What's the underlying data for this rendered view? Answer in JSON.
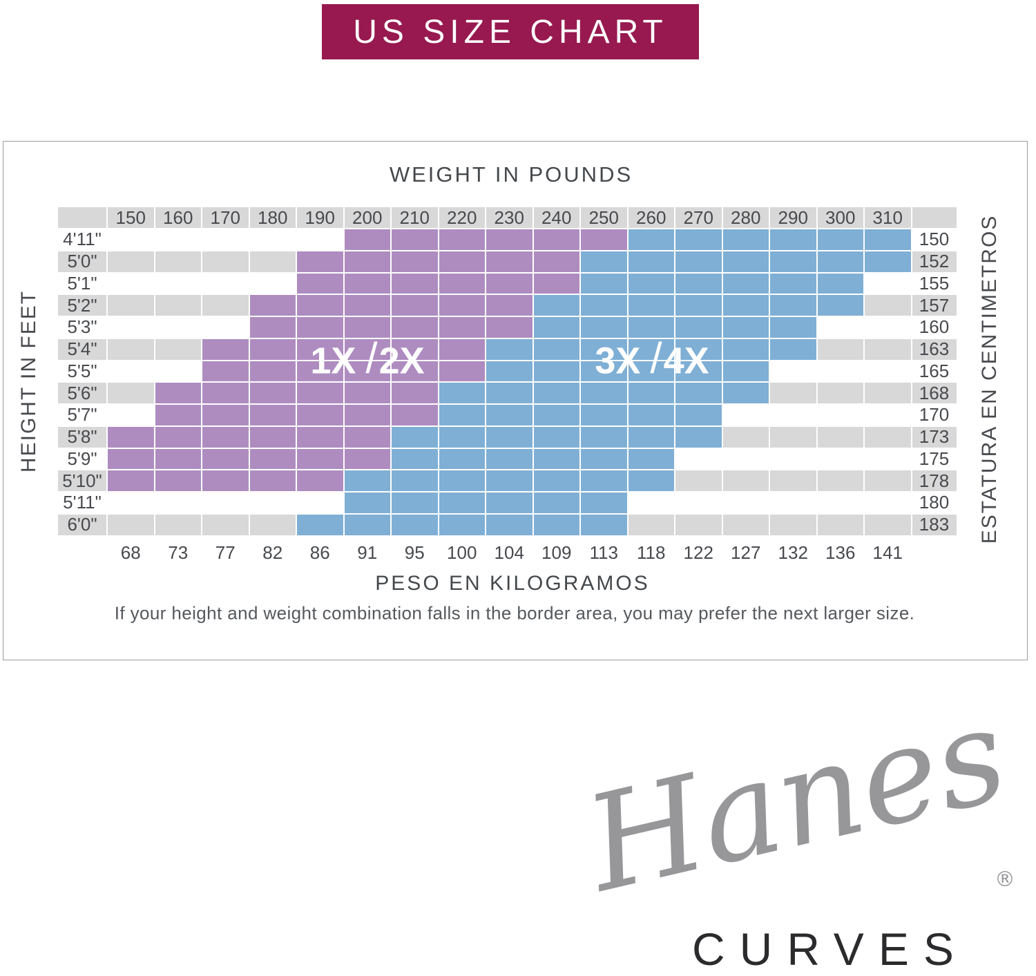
{
  "banner": {
    "label": "US SIZE CHART"
  },
  "axes": {
    "top": "WEIGHT IN POUNDS",
    "bottom": "PESO EN KILOGRAMOS",
    "left": "HEIGHT IN FEET",
    "right": "ESTATURA EN CENTIMETROS"
  },
  "note": "If your height and weight combination falls in the border area, you may prefer the next larger size.",
  "region_labels": {
    "purple_left": "1X",
    "purple_slash": "/",
    "purple_right": "2X",
    "blue_left": "3X",
    "blue_slash": "/",
    "blue_right": "4X"
  },
  "colors": {
    "banner_bg": "#97194f",
    "purple": "#ae8cc0",
    "blue": "#7fafd5",
    "stripe_gray": "#d8d8d8",
    "text_dark": "#47494d"
  },
  "logo": {
    "brand": "Hanes",
    "registered": "®",
    "subbrand": "CURVES"
  },
  "chart_data": {
    "type": "heatmap",
    "title": "US SIZE CHART",
    "x_label_top": "WEIGHT IN POUNDS",
    "x_label_bottom": "PESO EN KILOGRAMOS",
    "y_label_left": "HEIGHT IN FEET",
    "y_label_right": "ESTATURA EN CENTIMETROS",
    "legend": {
      "purple": "1X/2X",
      "blue": "3X/4X"
    },
    "weights_lb": [
      150,
      160,
      170,
      180,
      190,
      200,
      210,
      220,
      230,
      240,
      250,
      260,
      270,
      280,
      290,
      300,
      310
    ],
    "weights_kg": [
      68,
      73,
      77,
      82,
      86,
      91,
      95,
      100,
      104,
      109,
      113,
      118,
      122,
      127,
      132,
      136,
      141
    ],
    "rows": [
      {
        "height_ft": "4'11\"",
        "height_cm": "150",
        "purple": [
          200,
          250
        ],
        "blue": [
          260,
          310
        ],
        "striped": false
      },
      {
        "height_ft": "5'0\"",
        "height_cm": "152",
        "purple": [
          190,
          240
        ],
        "blue": [
          250,
          310
        ],
        "striped": true
      },
      {
        "height_ft": "5'1\"",
        "height_cm": "155",
        "purple": [
          190,
          240
        ],
        "blue": [
          250,
          300
        ],
        "striped": false
      },
      {
        "height_ft": "5'2\"",
        "height_cm": "157",
        "purple": [
          180,
          230
        ],
        "blue": [
          240,
          300
        ],
        "striped": true
      },
      {
        "height_ft": "5'3\"",
        "height_cm": "160",
        "purple": [
          180,
          230
        ],
        "blue": [
          240,
          290
        ],
        "striped": false
      },
      {
        "height_ft": "5'4\"",
        "height_cm": "163",
        "purple": [
          170,
          220
        ],
        "blue": [
          230,
          290
        ],
        "striped": true
      },
      {
        "height_ft": "5'5\"",
        "height_cm": "165",
        "purple": [
          170,
          220
        ],
        "blue": [
          230,
          280
        ],
        "striped": false
      },
      {
        "height_ft": "5'6\"",
        "height_cm": "168",
        "purple": [
          160,
          210
        ],
        "blue": [
          220,
          280
        ],
        "striped": true
      },
      {
        "height_ft": "5'7\"",
        "height_cm": "170",
        "purple": [
          160,
          210
        ],
        "blue": [
          220,
          270
        ],
        "striped": false
      },
      {
        "height_ft": "5'8\"",
        "height_cm": "173",
        "purple": [
          150,
          200
        ],
        "blue": [
          210,
          270
        ],
        "striped": true
      },
      {
        "height_ft": "5'9\"",
        "height_cm": "175",
        "purple": [
          150,
          200
        ],
        "blue": [
          210,
          260
        ],
        "striped": false
      },
      {
        "height_ft": "5'10\"",
        "height_cm": "178",
        "purple": [
          150,
          190
        ],
        "blue": [
          200,
          260
        ],
        "striped": true
      },
      {
        "height_ft": "5'11\"",
        "height_cm": "180",
        "purple": null,
        "blue": [
          200,
          250
        ],
        "striped": false
      },
      {
        "height_ft": "6'0\"",
        "height_cm": "183",
        "purple": null,
        "blue": [
          190,
          250
        ],
        "striped": true
      }
    ]
  }
}
